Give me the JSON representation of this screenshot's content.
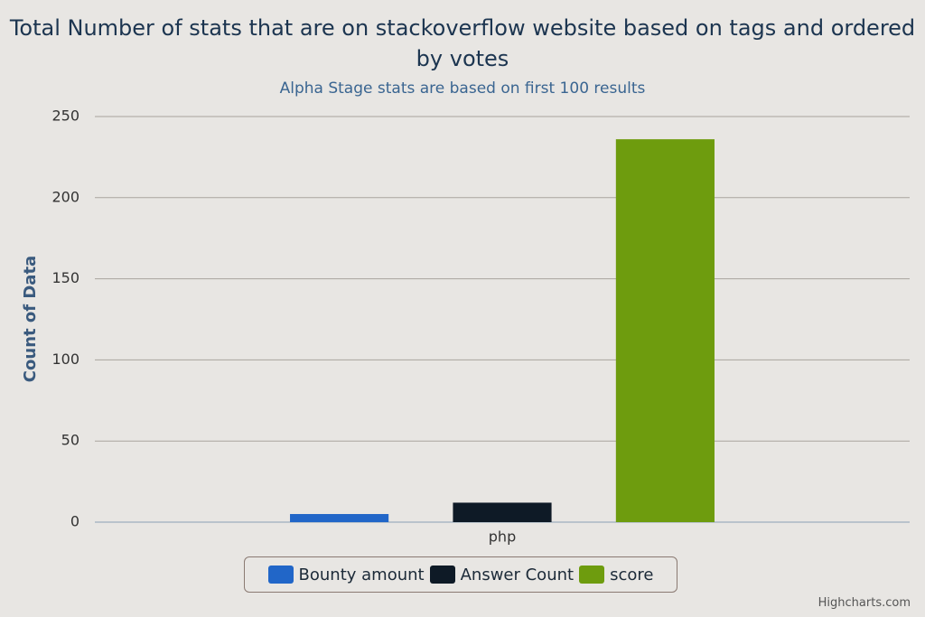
{
  "chart_data": {
    "type": "bar",
    "title": "Total Number of stats that are on stackoverflow website based on tags and ordered by votes",
    "subtitle": "Alpha Stage stats are based on first 100 results",
    "y_label": "Count of Data",
    "categories": [
      "php"
    ],
    "series": [
      {
        "name": "Bounty amount",
        "color": "#2166c8",
        "values": [
          5
        ]
      },
      {
        "name": "Answer Count",
        "color": "#0e1a26",
        "values": [
          12
        ]
      },
      {
        "name": "score",
        "color": "#6e9c0e",
        "values": [
          236
        ]
      }
    ],
    "ylim": [
      0,
      250
    ],
    "yticks": [
      0,
      50,
      100,
      150,
      200,
      250
    ],
    "grid": true,
    "legend": "bottom",
    "credits": "Highcharts.com"
  }
}
